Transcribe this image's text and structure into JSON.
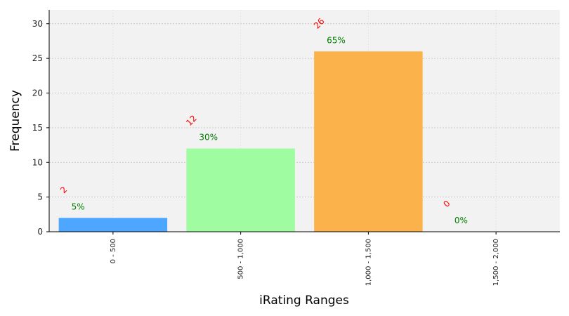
{
  "chart_data": {
    "type": "bar",
    "title": "",
    "xlabel": "iRating Ranges",
    "ylabel": "Frequency",
    "categories": [
      "0 - 500",
      "500 - 1,000",
      "1,000 - 1,500",
      "1,500 - 2,000"
    ],
    "values": [
      2,
      12,
      26,
      0
    ],
    "count_labels": [
      "2",
      "12",
      "26",
      "0"
    ],
    "percent_labels": [
      "5%",
      "30%",
      "65%",
      "0%"
    ],
    "ylim": [
      0,
      32
    ],
    "yticks": [
      0,
      5,
      10,
      15,
      20,
      25,
      30
    ],
    "grid": true,
    "colors": [
      "#4da6ff",
      "#a0fca0",
      "#fbb24a",
      "#cccccc"
    ],
    "count_label_color": "#ff0000",
    "percent_label_color": "#008000",
    "background_color": "#f2f2f2"
  }
}
